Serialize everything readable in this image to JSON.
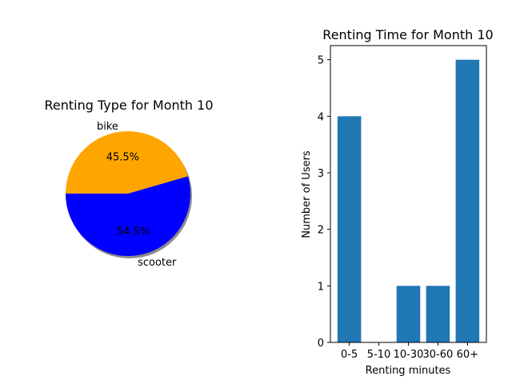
{
  "chart_data": [
    {
      "type": "pie",
      "title": "Renting Type for Month 10",
      "slices": [
        {
          "label": "scooter",
          "value": 54.5,
          "pct_label": "54.5%",
          "color": "#0000ff"
        },
        {
          "label": "bike",
          "value": 45.5,
          "pct_label": "45.5%",
          "color": "#ffa500"
        }
      ],
      "shadow": true
    },
    {
      "type": "bar",
      "title": "Renting Time for Month 10",
      "xlabel": "Renting minutes",
      "ylabel": "Number of Users",
      "categories": [
        "0-5",
        "5-10",
        "10-30",
        "30-60",
        "60+"
      ],
      "values": [
        4,
        0,
        1,
        1,
        5
      ],
      "ylim": [
        0,
        5.25
      ],
      "yticks": [
        "0",
        "1",
        "2",
        "3",
        "4",
        "5"
      ],
      "bar_color": "#1f77b4",
      "grid": false
    }
  ]
}
